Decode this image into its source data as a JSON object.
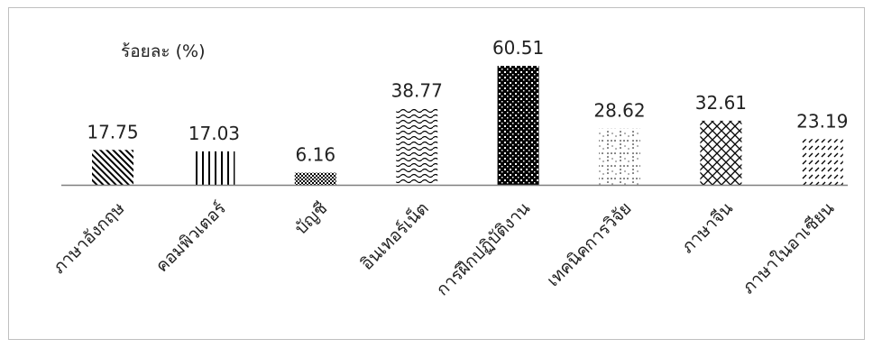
{
  "chart_data": {
    "type": "bar",
    "title": "",
    "unit_label": "ร้อยละ (%)",
    "categories": [
      "ภาษาอังกฤษ",
      "คอมพิวเตอร์",
      "บัญชี",
      "อินเทอร์เน็ต",
      "การฝึกปฏิบัติงาน",
      "เทคนิคการวิจัย",
      "ภาษาจีน",
      "ภาษาในอาเซียน"
    ],
    "values": [
      17.75,
      17.03,
      6.16,
      38.77,
      60.51,
      28.62,
      32.61,
      23.19
    ],
    "data_labels": [
      "17.75",
      "17.03",
      "6.16",
      "38.77",
      "60.51",
      "28.62",
      "32.61",
      "23.19"
    ],
    "patterns": [
      "diagonal-stripes",
      "vertical-lines",
      "dense-checker",
      "waves",
      "dense-dots",
      "grid-dots",
      "diamond-lattice",
      "dashed-diagonals"
    ],
    "ylim": [
      0,
      70
    ],
    "grid": false,
    "legend": "none",
    "colors": {
      "bar_ink": "#000000",
      "axis": "#7f7f7f",
      "frame": "#bfbfbf",
      "text": "#222222"
    }
  }
}
